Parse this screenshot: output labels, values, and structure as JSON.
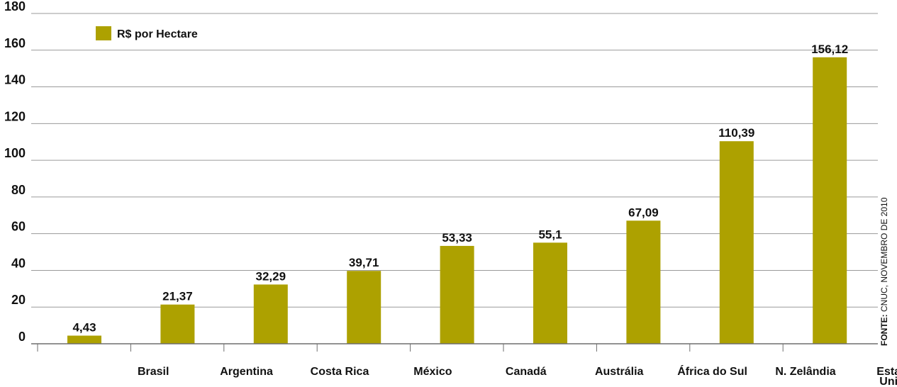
{
  "chart_data": {
    "type": "bar",
    "title": "",
    "xlabel": "",
    "ylabel": "",
    "categories": [
      "Brasil",
      "Argentina",
      "Costa Rica",
      "México",
      "Canadá",
      "Austrália",
      "África do Sul",
      "N. Zelândia",
      "Estados Unidos"
    ],
    "category_lines": [
      [
        "Brasil"
      ],
      [
        "Argentina"
      ],
      [
        "Costa Rica"
      ],
      [
        "México"
      ],
      [
        "Canadá"
      ],
      [
        "Austrália"
      ],
      [
        "África do Sul"
      ],
      [
        "N. Zelândia"
      ],
      [
        "Estados",
        "Unidos"
      ]
    ],
    "series": [
      {
        "name": "R$ por Hectare",
        "values": [
          4.43,
          21.37,
          32.29,
          39.71,
          53.33,
          55.1,
          67.09,
          110.39,
          156.12
        ],
        "value_labels": [
          "4,43",
          "21,37",
          "32,29",
          "39,71",
          "53,33",
          "55,1",
          "67,09",
          "110,39",
          "156,12"
        ],
        "color": "#ADA100"
      }
    ],
    "y_tick_labels": [
      "0",
      "20",
      "40",
      "60",
      "80",
      "100",
      "120",
      "140",
      "160",
      "180"
    ],
    "ylim": [
      0,
      180
    ],
    "grid": true,
    "legend_position": "top-left",
    "gridline_color": "#9A9A9A",
    "axis_color": "#6E6E6E"
  },
  "source": {
    "label": "FONTE:",
    "text": " CNUC, NOVEMBRO DE 2010"
  }
}
